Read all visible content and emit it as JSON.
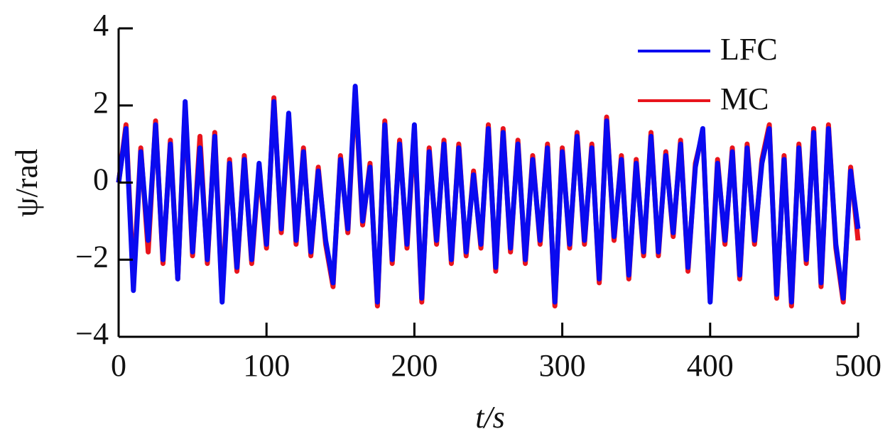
{
  "chart_data": {
    "type": "line",
    "xlabel": "t/s",
    "ylabel": "ψ/rad",
    "x": [
      0,
      5,
      10,
      15,
      20,
      25,
      30,
      35,
      40,
      45,
      50,
      55,
      60,
      65,
      70,
      75,
      80,
      85,
      90,
      95,
      100,
      105,
      110,
      115,
      120,
      125,
      130,
      135,
      140,
      145,
      150,
      155,
      160,
      165,
      170,
      175,
      180,
      185,
      190,
      195,
      200,
      205,
      210,
      215,
      220,
      225,
      230,
      235,
      240,
      245,
      250,
      255,
      260,
      265,
      270,
      275,
      280,
      285,
      290,
      295,
      300,
      305,
      310,
      315,
      320,
      325,
      330,
      335,
      340,
      345,
      350,
      355,
      360,
      365,
      370,
      375,
      380,
      385,
      390,
      395,
      400,
      405,
      410,
      415,
      420,
      425,
      430,
      435,
      440,
      445,
      450,
      455,
      460,
      465,
      470,
      475,
      480,
      485,
      490,
      495,
      500
    ],
    "series": [
      {
        "name": "MC",
        "color": "#e8141c",
        "values": [
          0,
          1.5,
          -2.6,
          0.9,
          -1.8,
          1.6,
          -2.1,
          1.1,
          -2.5,
          2.0,
          -1.9,
          1.2,
          -2.1,
          1.3,
          -3.0,
          0.6,
          -2.3,
          0.7,
          -2.1,
          0.4,
          -1.7,
          2.2,
          -1.3,
          1.7,
          -1.6,
          0.9,
          -1.9,
          0.4,
          -1.6,
          -2.7,
          0.7,
          -1.3,
          2.4,
          -1.1,
          0.5,
          -3.2,
          1.6,
          -2.1,
          1.1,
          -1.7,
          1.4,
          -3.1,
          0.9,
          -1.6,
          1.1,
          -2.1,
          1.0,
          -1.9,
          0.3,
          -1.7,
          1.5,
          -2.3,
          1.4,
          -1.8,
          1.1,
          -2.1,
          0.7,
          -1.6,
          1.0,
          -3.2,
          0.9,
          -1.7,
          1.3,
          -1.6,
          1.0,
          -2.6,
          1.7,
          -1.5,
          0.7,
          -2.5,
          0.6,
          -1.9,
          1.3,
          -1.9,
          0.8,
          -1.4,
          1.1,
          -2.3,
          0.5,
          1.3,
          -3.0,
          0.6,
          -1.6,
          0.9,
          -2.5,
          1.0,
          -1.6,
          0.6,
          1.5,
          -3.0,
          0.7,
          -3.2,
          1.0,
          -2.1,
          1.4,
          -2.7,
          1.5,
          -1.7,
          -3.1,
          0.4,
          -1.5
        ]
      },
      {
        "name": "LFC",
        "color": "#0a0af0",
        "values": [
          0,
          1.4,
          -2.8,
          0.8,
          -1.5,
          1.5,
          -2.0,
          1.0,
          -2.5,
          2.1,
          -1.8,
          0.9,
          -2.0,
          1.2,
          -3.1,
          0.5,
          -2.2,
          0.6,
          -2.0,
          0.5,
          -1.6,
          2.1,
          -1.2,
          1.8,
          -1.5,
          0.8,
          -1.8,
          0.3,
          -1.5,
          -2.6,
          0.6,
          -1.2,
          2.5,
          -1.0,
          0.4,
          -3.1,
          1.5,
          -2.0,
          1.0,
          -1.6,
          1.5,
          -3.0,
          0.8,
          -1.5,
          1.0,
          -2.0,
          0.9,
          -1.8,
          0.2,
          -1.6,
          1.4,
          -2.2,
          1.3,
          -1.7,
          1.0,
          -2.0,
          0.6,
          -1.5,
          0.9,
          -3.1,
          0.8,
          -1.6,
          1.2,
          -1.5,
          0.9,
          -2.5,
          1.6,
          -1.4,
          0.6,
          -2.4,
          0.5,
          -1.8,
          1.2,
          -1.8,
          0.7,
          -1.3,
          1.0,
          -2.2,
          0.4,
          1.4,
          -3.1,
          0.5,
          -1.5,
          0.8,
          -2.4,
          0.9,
          -1.5,
          0.5,
          1.4,
          -2.9,
          0.6,
          -3.1,
          0.9,
          -2.0,
          1.3,
          -2.6,
          1.4,
          -1.6,
          -3.0,
          0.3,
          -1.2
        ]
      }
    ],
    "xlim": [
      0,
      500
    ],
    "xticks": [
      0,
      100,
      200,
      300,
      400,
      500
    ],
    "ylim": [
      -4,
      4
    ],
    "yticks": [
      {
        "value": -4,
        "label": "−4"
      },
      {
        "value": -2,
        "label": "−2"
      },
      0,
      2,
      4
    ],
    "legend": "upper right"
  }
}
